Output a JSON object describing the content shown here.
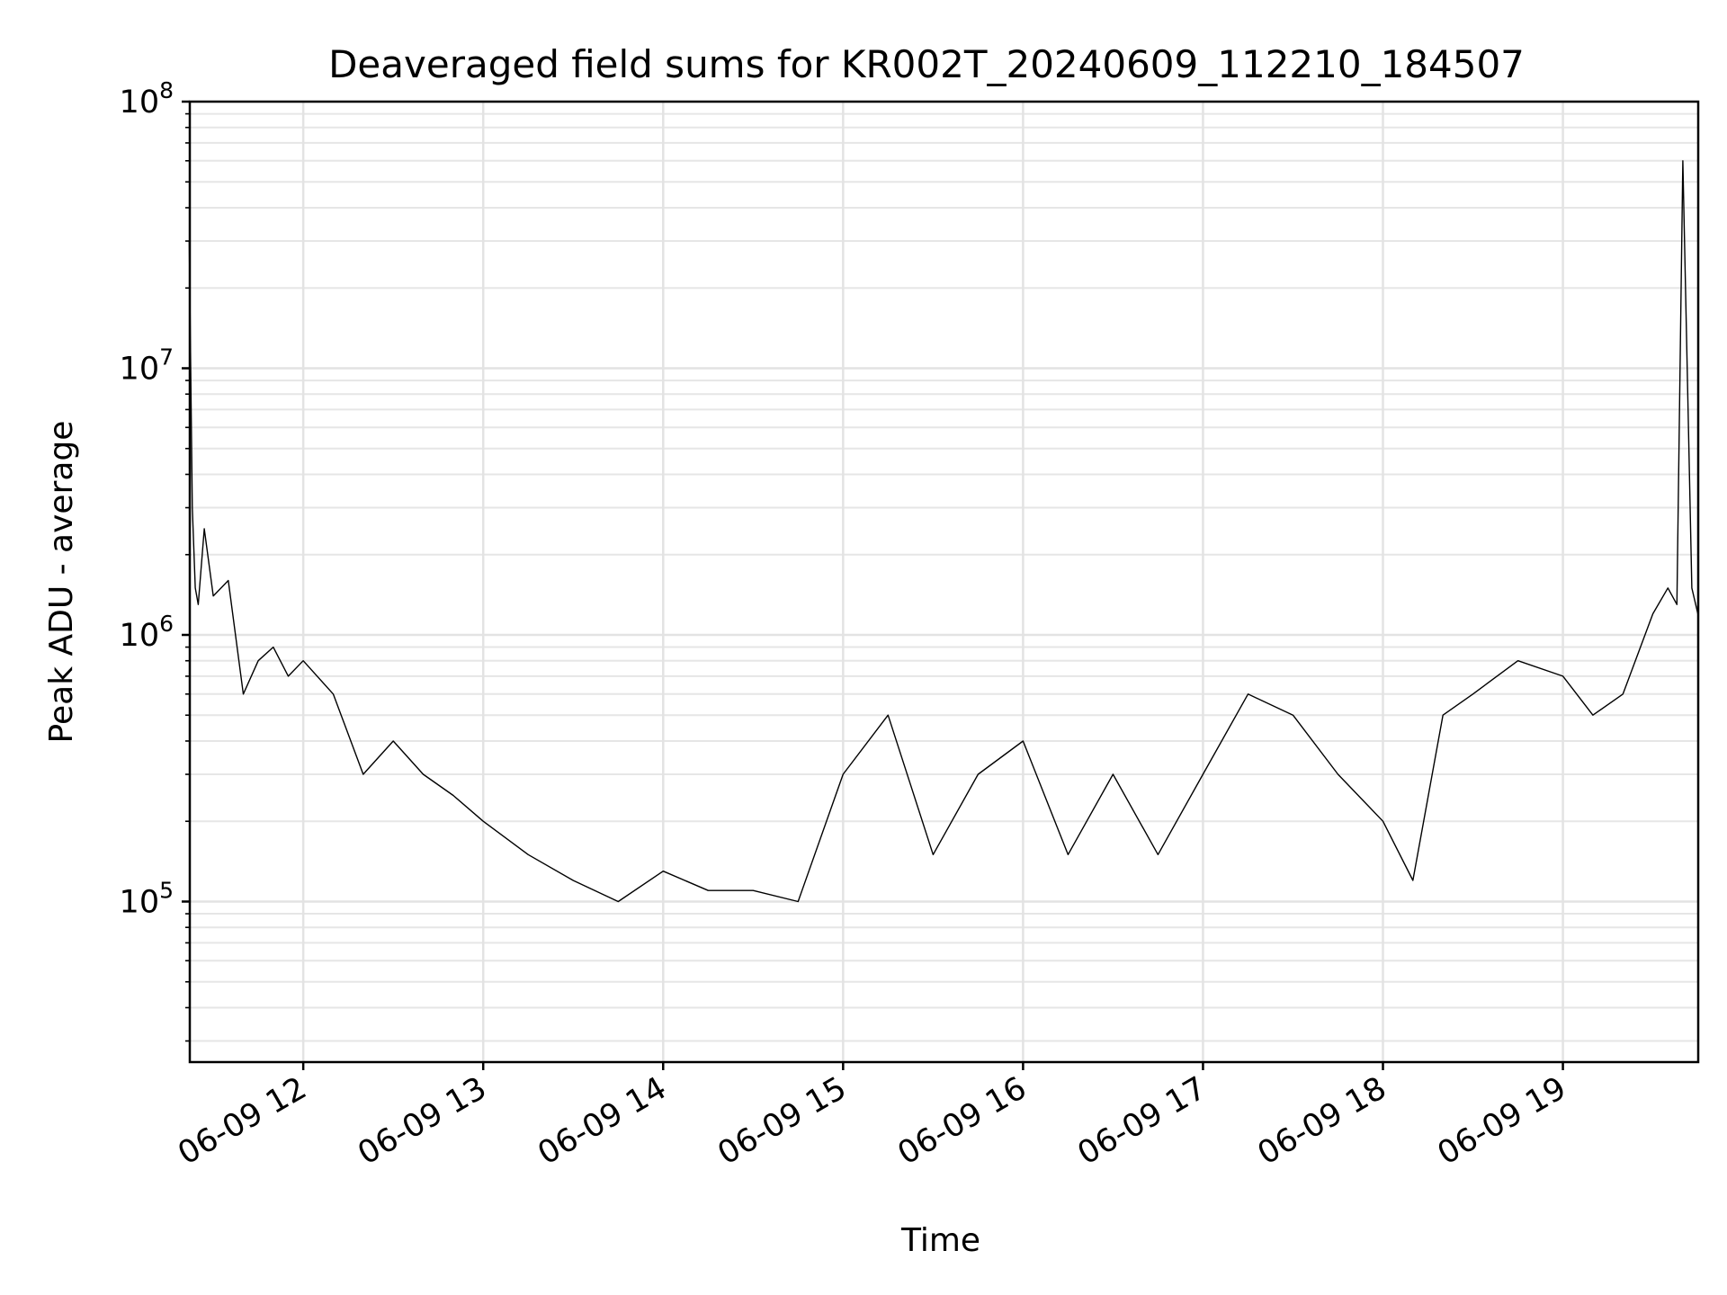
{
  "chart_data": {
    "type": "line",
    "title": "Deaveraged field sums for KR002T_20240609_112210_184507",
    "xlabel": "Time",
    "ylabel": "Peak ADU - average",
    "x_axis": "time",
    "xlim": [
      "2024-06-09 11:22:10",
      "2024-06-09 19:45:07"
    ],
    "x_ticks": [
      {
        "t": "2024-06-09 12:00",
        "label": "06-09 12"
      },
      {
        "t": "2024-06-09 13:00",
        "label": "06-09 13"
      },
      {
        "t": "2024-06-09 14:00",
        "label": "06-09 14"
      },
      {
        "t": "2024-06-09 15:00",
        "label": "06-09 15"
      },
      {
        "t": "2024-06-09 16:00",
        "label": "06-09 16"
      },
      {
        "t": "2024-06-09 17:00",
        "label": "06-09 17"
      },
      {
        "t": "2024-06-09 18:00",
        "label": "06-09 18"
      },
      {
        "t": "2024-06-09 19:00",
        "label": "06-09 19"
      }
    ],
    "y_scale": "log",
    "ylim": [
      25000,
      100000000
    ],
    "y_ticks": [
      {
        "value": 100000,
        "base": "10",
        "exp": "5"
      },
      {
        "value": 1000000,
        "base": "10",
        "exp": "6"
      },
      {
        "value": 10000000,
        "base": "10",
        "exp": "7"
      },
      {
        "value": 100000000,
        "base": "10",
        "exp": "8"
      }
    ],
    "grid": true,
    "line_color": "#000000",
    "series": [
      {
        "x": [
          "2024-06-09 11:22",
          "2024-06-09 11:23",
          "2024-06-09 11:24",
          "2024-06-09 11:25",
          "2024-06-09 11:27",
          "2024-06-09 11:30",
          "2024-06-09 11:35",
          "2024-06-09 11:40",
          "2024-06-09 11:45",
          "2024-06-09 11:50",
          "2024-06-09 11:55",
          "2024-06-09 12:00",
          "2024-06-09 12:10",
          "2024-06-09 12:20",
          "2024-06-09 12:30",
          "2024-06-09 12:40",
          "2024-06-09 12:50",
          "2024-06-09 13:00",
          "2024-06-09 13:15",
          "2024-06-09 13:30",
          "2024-06-09 13:45",
          "2024-06-09 14:00",
          "2024-06-09 14:15",
          "2024-06-09 14:30",
          "2024-06-09 14:45",
          "2024-06-09 15:00",
          "2024-06-09 15:15",
          "2024-06-09 15:30",
          "2024-06-09 15:45",
          "2024-06-09 16:00",
          "2024-06-09 16:15",
          "2024-06-09 16:30",
          "2024-06-09 16:45",
          "2024-06-09 17:00",
          "2024-06-09 17:15",
          "2024-06-09 17:30",
          "2024-06-09 17:45",
          "2024-06-09 18:00",
          "2024-06-09 18:10",
          "2024-06-09 18:20",
          "2024-06-09 18:30",
          "2024-06-09 18:45",
          "2024-06-09 19:00",
          "2024-06-09 19:10",
          "2024-06-09 19:20",
          "2024-06-09 19:30",
          "2024-06-09 19:35",
          "2024-06-09 19:38",
          "2024-06-09 19:40",
          "2024-06-09 19:43",
          "2024-06-09 19:45"
        ],
        "values": [
          30000000,
          3000000,
          1500000,
          1300000,
          2500000,
          1400000,
          1600000,
          600000,
          800000,
          900000,
          700000,
          800000,
          600000,
          300000,
          400000,
          300000,
          250000,
          200000,
          150000,
          120000,
          100000,
          130000,
          110000,
          110000,
          100000,
          300000,
          500000,
          150000,
          300000,
          400000,
          150000,
          300000,
          150000,
          300000,
          600000,
          500000,
          300000,
          200000,
          120000,
          500000,
          600000,
          800000,
          700000,
          500000,
          600000,
          1200000,
          1500000,
          1300000,
          60000000,
          1500000,
          1200000
        ]
      }
    ]
  }
}
